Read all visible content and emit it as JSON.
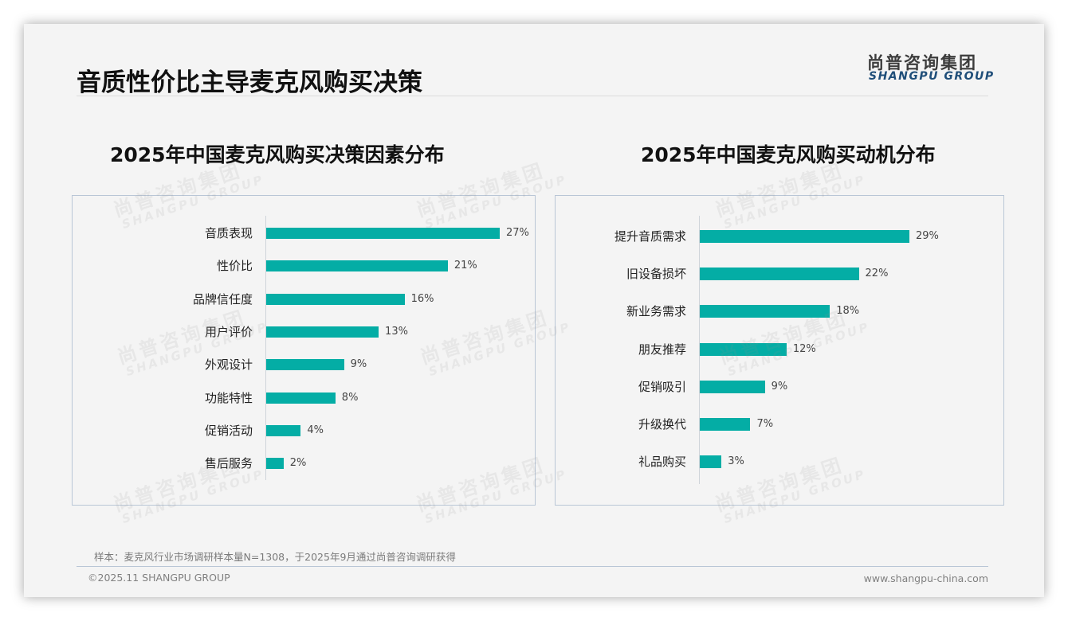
{
  "header": {
    "title": "音质性价比主导麦克风购买决策",
    "logo_cn": "尚普咨询集团",
    "logo_en": "SHANGPU GROUP"
  },
  "watermark": {
    "cn": "尚普咨询集团",
    "en": "SHANGPU GROUP"
  },
  "colors": {
    "bar": "#04ada5",
    "panel_border": "#b9c6d6",
    "logo_en": "#1f4e79"
  },
  "chart_data": [
    {
      "type": "bar",
      "orientation": "horizontal",
      "title": "2025年中国麦克风购买决策因素分布",
      "categories": [
        "音质表现",
        "性价比",
        "品牌信任度",
        "用户评价",
        "外观设计",
        "功能特性",
        "促销活动",
        "售后服务"
      ],
      "values": [
        27,
        21,
        16,
        13,
        9,
        8,
        4,
        2
      ],
      "labels": [
        "27%",
        "21%",
        "16%",
        "13%",
        "9%",
        "8%",
        "4%",
        "2%"
      ],
      "unit": "%",
      "xlabel": "",
      "ylabel": "",
      "grid": false,
      "legend": "none"
    },
    {
      "type": "bar",
      "orientation": "horizontal",
      "title": "2025年中国麦克风购买动机分布",
      "categories": [
        "提升音质需求",
        "旧设备损坏",
        "新业务需求",
        "朋友推荐",
        "促销吸引",
        "升级换代",
        "礼品购买"
      ],
      "values": [
        29,
        22,
        18,
        12,
        9,
        7,
        3
      ],
      "labels": [
        "29%",
        "22%",
        "18%",
        "12%",
        "9%",
        "7%",
        "3%"
      ],
      "unit": "%",
      "xlabel": "",
      "ylabel": "",
      "grid": false,
      "legend": "none"
    }
  ],
  "footer": {
    "note": "样本：麦克风行业市场调研样本量N=1308，于2025年9月通过尚普咨询调研获得",
    "copyright": "©2025.11 SHANGPU GROUP",
    "website": "www.shangpu-china.com"
  }
}
